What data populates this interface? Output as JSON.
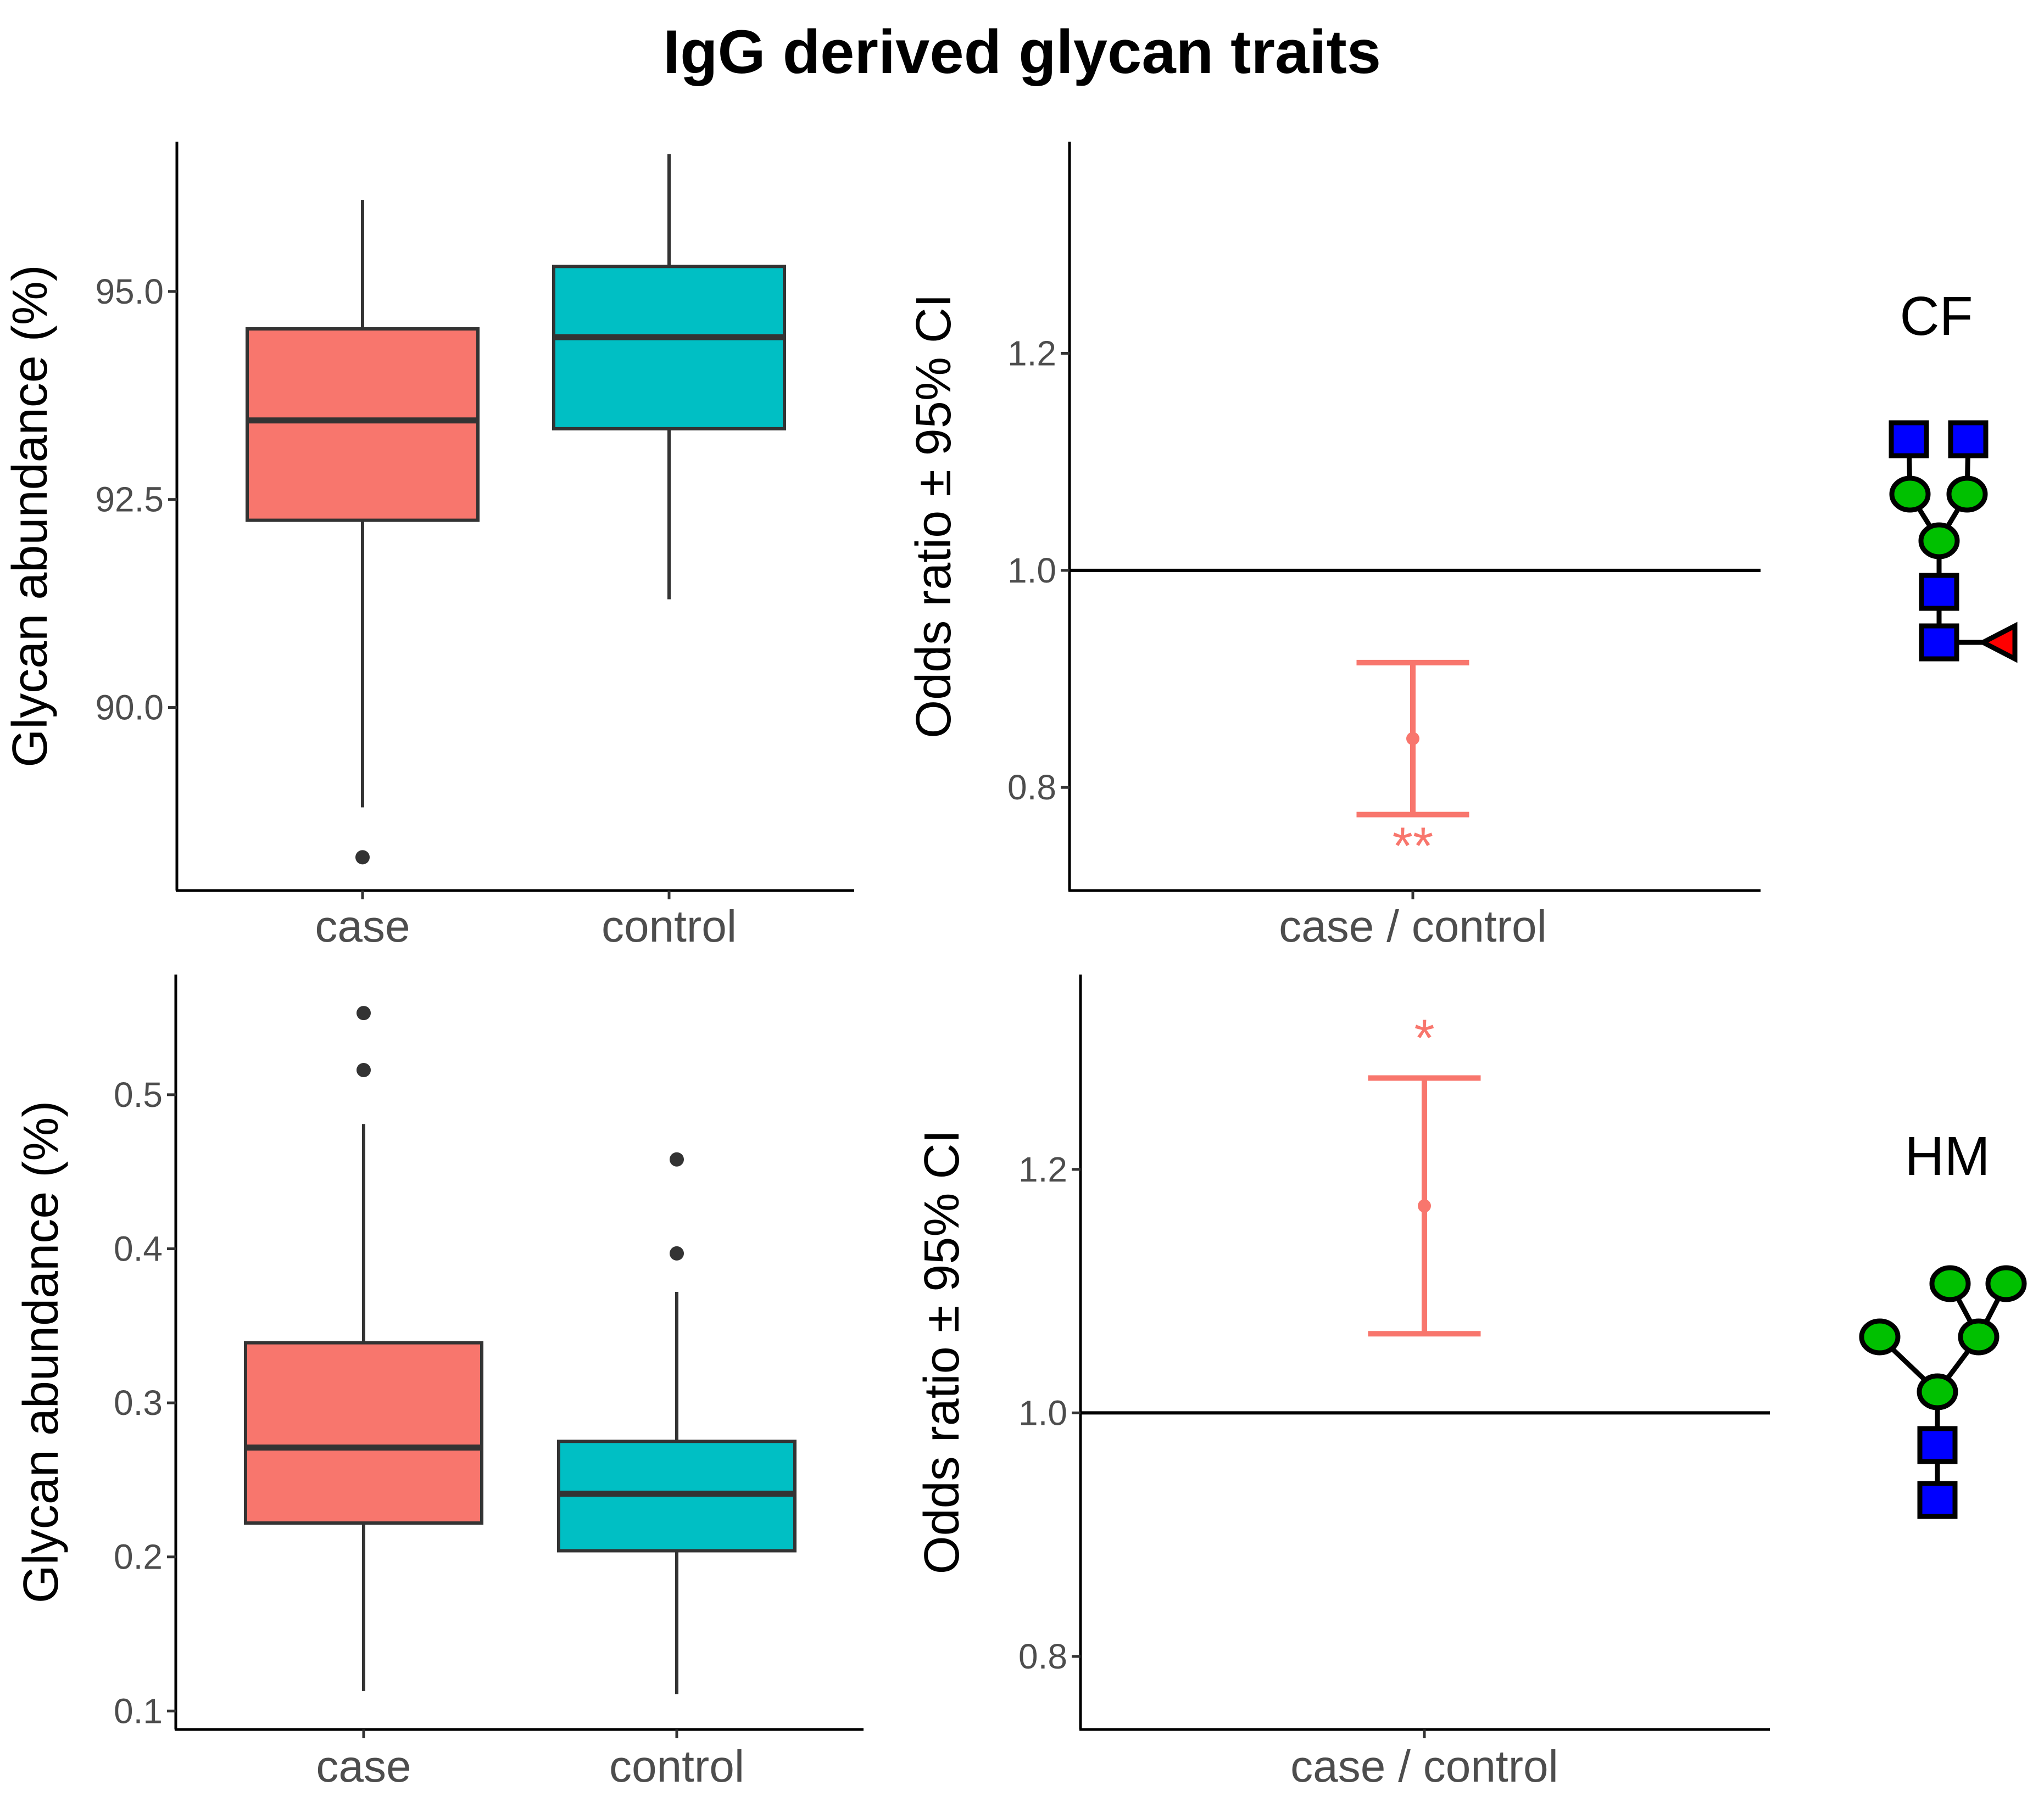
{
  "title": "IgG derived glycan traits",
  "colors": {
    "case": "#F8766D",
    "control": "#00BFC4",
    "box_line": "#333333",
    "reference_line": "#000000",
    "gn_square": "#0000FF",
    "mannose_circle": "#00C000",
    "fucose_triangle": "#FF0000"
  },
  "chart_data": [
    {
      "type": "boxplot",
      "id": "cf-box",
      "ylabel": "Glycan abundance (%)",
      "categories": [
        "case",
        "control"
      ],
      "ylim": [
        87.8,
        96.8
      ],
      "yticks": [
        90.0,
        92.5,
        95.0
      ],
      "ytick_labels": [
        "90.0",
        "92.5",
        "95.0"
      ],
      "boxes": [
        {
          "name": "case",
          "whisker_low": 88.8,
          "q1": 92.25,
          "median": 93.45,
          "q3": 94.55,
          "whisker_high": 96.1,
          "outliers": [
            88.2
          ]
        },
        {
          "name": "control",
          "whisker_low": 91.3,
          "q1": 93.35,
          "median": 94.45,
          "q3": 95.3,
          "whisker_high": 96.65,
          "outliers": []
        }
      ]
    },
    {
      "type": "errorbar",
      "id": "cf-or",
      "ylabel": "Odds ratio ± 95% CI",
      "xlabel": "case / control",
      "ylim": [
        0.705,
        1.395
      ],
      "yticks": [
        0.8,
        1.0,
        1.2
      ],
      "ytick_labels": [
        "0.8",
        "1.0",
        "1.2"
      ],
      "reference": 1.0,
      "estimate": 0.845,
      "ci_low": 0.775,
      "ci_high": 0.915,
      "significance": "**"
    },
    {
      "type": "boxplot",
      "id": "hm-box",
      "ylabel": "Glycan abundance (%)",
      "categories": [
        "case",
        "control"
      ],
      "ylim": [
        0.088,
        0.578
      ],
      "yticks": [
        0.1,
        0.2,
        0.3,
        0.4,
        0.5
      ],
      "ytick_labels": [
        "0.1",
        "0.2",
        "0.3",
        "0.4",
        "0.5"
      ],
      "boxes": [
        {
          "name": "case",
          "whisker_low": 0.113,
          "q1": 0.222,
          "median": 0.271,
          "q3": 0.339,
          "whisker_high": 0.481,
          "outliers": [
            0.516,
            0.553
          ]
        },
        {
          "name": "control",
          "whisker_low": 0.111,
          "q1": 0.204,
          "median": 0.241,
          "q3": 0.275,
          "whisker_high": 0.372,
          "outliers": [
            0.397,
            0.458
          ]
        }
      ]
    },
    {
      "type": "errorbar",
      "id": "hm-or",
      "ylabel": "Odds ratio ± 95% CI",
      "xlabel": "case / control",
      "ylim": [
        0.74,
        1.36
      ],
      "yticks": [
        0.8,
        1.0,
        1.2
      ],
      "ytick_labels": [
        "0.8",
        "1.0",
        "1.2"
      ],
      "reference": 1.0,
      "estimate": 1.17,
      "ci_low": 1.065,
      "ci_high": 1.275,
      "significance": "*"
    }
  ],
  "glycans": [
    {
      "label": "CF"
    },
    {
      "label": "HM"
    }
  ]
}
